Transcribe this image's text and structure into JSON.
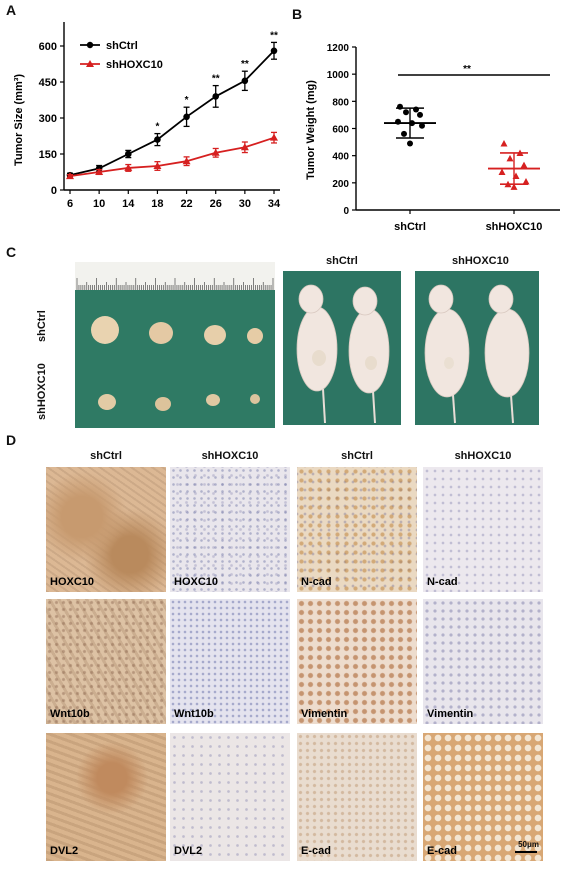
{
  "panels": {
    "a": "A",
    "b": "B",
    "c": "C",
    "d": "D"
  },
  "chart_data": [
    {
      "type": "line",
      "ylabel": "Tumor Size (mm³)",
      "x": [
        6,
        10,
        14,
        18,
        22,
        26,
        30,
        34
      ],
      "ylim": [
        0,
        700
      ],
      "yticks": [
        0,
        150,
        300,
        450,
        600
      ],
      "legend_position": "top-left",
      "series": [
        {
          "name": "shCtrl",
          "color": "#000000",
          "marker": "circle",
          "values": [
            62,
            90,
            150,
            210,
            305,
            390,
            455,
            580
          ],
          "err": [
            8,
            12,
            15,
            25,
            40,
            45,
            40,
            35
          ]
        },
        {
          "name": "shHOXC10",
          "color": "#d62020",
          "marker": "triangle",
          "values": [
            58,
            75,
            92,
            100,
            120,
            155,
            178,
            218
          ],
          "err": [
            6,
            10,
            14,
            18,
            18,
            18,
            22,
            22
          ]
        }
      ],
      "annotations": [
        {
          "x": 18,
          "text": "*"
        },
        {
          "x": 22,
          "text": "*"
        },
        {
          "x": 26,
          "text": "**"
        },
        {
          "x": 30,
          "text": "**"
        },
        {
          "x": 34,
          "text": "**"
        }
      ]
    },
    {
      "type": "scatter",
      "ylabel": "Tumor Weight (mg)",
      "categories": [
        "shCtrl",
        "shHOXC10"
      ],
      "ylim": [
        0,
        1200
      ],
      "yticks": [
        0,
        200,
        400,
        600,
        800,
        1000,
        1200
      ],
      "significance": "**",
      "series": [
        {
          "name": "shCtrl",
          "color": "#000000",
          "marker": "circle",
          "points": [
            760,
            740,
            720,
            700,
            650,
            640,
            620,
            560,
            490
          ],
          "mean": 640,
          "err": 110
        },
        {
          "name": "shHOXC10",
          "color": "#d62020",
          "marker": "triangle",
          "points": [
            490,
            420,
            380,
            330,
            280,
            250,
            210,
            190,
            170
          ],
          "mean": 305,
          "err": 115
        }
      ]
    }
  ],
  "panel_c": {
    "row_labels": [
      "shCtrl",
      "shHOXC10"
    ],
    "mouse_headers": [
      "shCtrl",
      "shHOXC10"
    ]
  },
  "panel_d": {
    "col_headers": [
      "shCtrl",
      "shHOXC10",
      "shCtrl",
      "shHOXC10"
    ],
    "rows": [
      [
        "HOXC10",
        "HOXC10",
        "N-cad",
        "N-cad"
      ],
      [
        "Wnt10b",
        "Wnt10b",
        "Vimentin",
        "Vimentin"
      ],
      [
        "DVL2",
        "DVL2",
        "E-cad",
        "E-cad"
      ]
    ],
    "scale_bar": "50μm"
  }
}
